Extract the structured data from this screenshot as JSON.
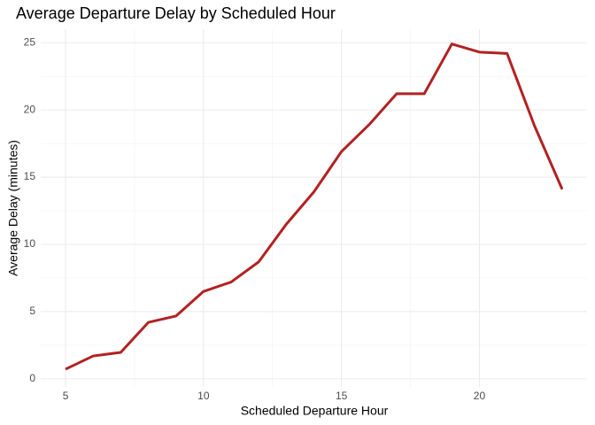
{
  "chart_data": {
    "type": "line",
    "title": "Average Departure Delay by Scheduled Hour",
    "x_label": "Scheduled Departure Hour",
    "y_label": "Average Delay (minutes)",
    "x": [
      5,
      6,
      7,
      8,
      9,
      10,
      11,
      12,
      13,
      14,
      15,
      16,
      17,
      18,
      19,
      20,
      21,
      22,
      23
    ],
    "series": [
      {
        "name": "Average Delay",
        "color": "#b22222",
        "values": [
          0.72,
          1.7,
          1.97,
          4.2,
          4.67,
          6.5,
          7.2,
          8.7,
          11.5,
          13.9,
          16.9,
          18.9,
          21.2,
          21.2,
          24.9,
          24.3,
          24.2,
          18.8,
          14.1
        ]
      }
    ],
    "xlim": [
      4.1,
      23.9
    ],
    "xticks": [
      5,
      10,
      15,
      20
    ],
    "ylim": [
      -0.6,
      26
    ],
    "yticks": [
      0,
      5,
      10,
      15,
      20,
      25
    ],
    "grid": true
  }
}
